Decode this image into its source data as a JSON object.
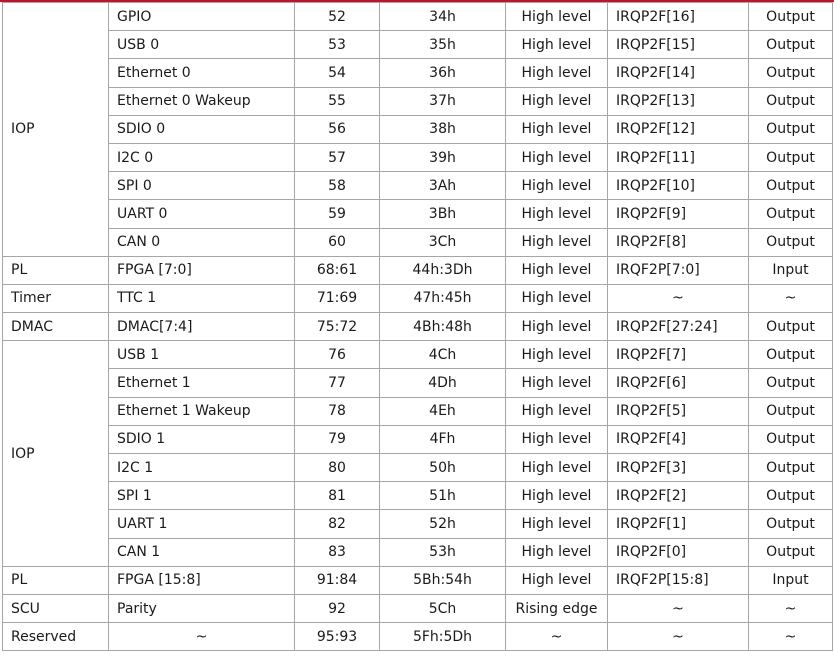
{
  "table": {
    "rows": [
      {
        "group": "IOP",
        "span": 9,
        "device": "GPIO",
        "irq_id": "52",
        "irq_hex": "34h",
        "trigger": "High level",
        "status_bit": "IRQP2F[16]",
        "direction": "Output"
      },
      {
        "device": "USB 0",
        "irq_id": "53",
        "irq_hex": "35h",
        "trigger": "High level",
        "status_bit": "IRQP2F[15]",
        "direction": "Output"
      },
      {
        "device": "Ethernet 0",
        "irq_id": "54",
        "irq_hex": "36h",
        "trigger": "High level",
        "status_bit": "IRQP2F[14]",
        "direction": "Output"
      },
      {
        "device": "Ethernet 0 Wakeup",
        "irq_id": "55",
        "irq_hex": "37h",
        "trigger": "High level",
        "status_bit": "IRQP2F[13]",
        "direction": "Output"
      },
      {
        "device": "SDIO 0",
        "irq_id": "56",
        "irq_hex": "38h",
        "trigger": "High level",
        "status_bit": "IRQP2F[12]",
        "direction": "Output"
      },
      {
        "device": "I2C 0",
        "irq_id": "57",
        "irq_hex": "39h",
        "trigger": "High level",
        "status_bit": "IRQP2F[11]",
        "direction": "Output"
      },
      {
        "device": "SPI 0",
        "irq_id": "58",
        "irq_hex": "3Ah",
        "trigger": "High level",
        "status_bit": "IRQP2F[10]",
        "direction": "Output"
      },
      {
        "device": "UART 0",
        "irq_id": "59",
        "irq_hex": "3Bh",
        "trigger": "High level",
        "status_bit": "IRQP2F[9]",
        "direction": "Output"
      },
      {
        "device": "CAN 0",
        "irq_id": "60",
        "irq_hex": "3Ch",
        "trigger": "High level",
        "status_bit": "IRQP2F[8]",
        "direction": "Output"
      },
      {
        "group": "PL",
        "span": 1,
        "device": "FPGA [7:0]",
        "irq_id": "68:61",
        "irq_hex": "44h:3Dh",
        "trigger": "High level",
        "status_bit": "IRQF2P[7:0]",
        "direction": "Input"
      },
      {
        "group": "Timer",
        "span": 1,
        "device": "TTC 1",
        "irq_id": "71:69",
        "irq_hex": "47h:45h",
        "trigger": "High level",
        "status_bit": "~",
        "direction": "~"
      },
      {
        "group": "DMAC",
        "span": 1,
        "device": "DMAC[7:4]",
        "irq_id": "75:72",
        "irq_hex": "4Bh:48h",
        "trigger": "High level",
        "status_bit": "IRQP2F[27:24]",
        "direction": "Output"
      },
      {
        "group": "IOP",
        "span": 8,
        "device": "USB 1",
        "irq_id": "76",
        "irq_hex": "4Ch",
        "trigger": "High level",
        "status_bit": "IRQP2F[7]",
        "direction": "Output"
      },
      {
        "device": "Ethernet 1",
        "irq_id": "77",
        "irq_hex": "4Dh",
        "trigger": "High level",
        "status_bit": "IRQP2F[6]",
        "direction": "Output"
      },
      {
        "device": "Ethernet 1 Wakeup",
        "irq_id": "78",
        "irq_hex": "4Eh",
        "trigger": "High level",
        "status_bit": "IRQP2F[5]",
        "direction": "Output"
      },
      {
        "device": "SDIO 1",
        "irq_id": "79",
        "irq_hex": "4Fh",
        "trigger": "High level",
        "status_bit": "IRQP2F[4]",
        "direction": "Output"
      },
      {
        "device": "I2C 1",
        "irq_id": "80",
        "irq_hex": "50h",
        "trigger": "High level",
        "status_bit": "IRQP2F[3]",
        "direction": "Output"
      },
      {
        "device": "SPI 1",
        "irq_id": "81",
        "irq_hex": "51h",
        "trigger": "High level",
        "status_bit": "IRQP2F[2]",
        "direction": "Output"
      },
      {
        "device": "UART 1",
        "irq_id": "82",
        "irq_hex": "52h",
        "trigger": "High level",
        "status_bit": "IRQP2F[1]",
        "direction": "Output"
      },
      {
        "device": "CAN 1",
        "irq_id": "83",
        "irq_hex": "53h",
        "trigger": "High level",
        "status_bit": "IRQP2F[0]",
        "direction": "Output"
      },
      {
        "group": "PL",
        "span": 1,
        "device": "FPGA [15:8]",
        "irq_id": "91:84",
        "irq_hex": "5Bh:54h",
        "trigger": "High level",
        "status_bit": "IRQF2P[15:8]",
        "direction": "Input"
      },
      {
        "group": "SCU",
        "span": 1,
        "device": "Parity",
        "irq_id": "92",
        "irq_hex": "5Ch",
        "trigger": "Rising edge",
        "status_bit": "~",
        "direction": "~"
      },
      {
        "group": "Reserved",
        "span": 1,
        "device": "~",
        "irq_id": "95:93",
        "irq_hex": "5Fh:5Dh",
        "trigger": "~",
        "status_bit": "~",
        "direction": "~"
      }
    ]
  },
  "colors": {
    "accent_rule": "#c8102e",
    "grid": "#a6a6a6",
    "text": "#1a1a1a"
  }
}
